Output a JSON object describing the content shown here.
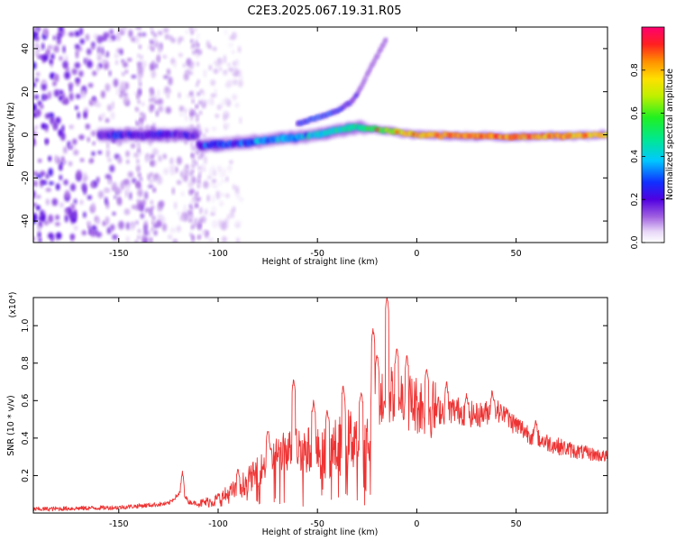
{
  "title": "C2E3.2025.067.19.31.R05",
  "chart_data": [
    {
      "type": "heatmap",
      "xlabel": "Height of straight line (km)",
      "ylabel": "Frequency (Hz)",
      "xlim": [
        -193,
        96
      ],
      "ylim": [
        -50,
        50
      ],
      "xticks": [
        -150,
        -100,
        -50,
        0,
        50
      ],
      "yticks": [
        -40,
        -20,
        0,
        20,
        40
      ],
      "colorbar": {
        "label": "Normalized spectral amplitude",
        "range": [
          0,
          1
        ],
        "ticks": [
          0.0,
          0.2,
          0.4,
          0.6,
          0.8
        ]
      },
      "ridge": {
        "x": [
          -110,
          -90,
          -70,
          -50,
          -40,
          -30,
          -25,
          0,
          50,
          96
        ],
        "y": [
          -5,
          -4,
          -2,
          0,
          2,
          3.5,
          3,
          0,
          -1,
          0
        ],
        "amplitude": [
          0.25,
          0.3,
          0.35,
          0.4,
          0.45,
          0.45,
          0.5,
          0.8,
          0.85,
          0.75
        ]
      },
      "upper_branch": {
        "x": [
          -60,
          -50,
          -40,
          -32,
          -28,
          -25,
          -15
        ],
        "y": [
          5,
          8,
          11,
          16,
          22,
          28,
          45
        ],
        "amplitude": [
          0.25,
          0.3,
          0.25,
          0.2,
          0.15,
          0.1,
          0.08
        ]
      },
      "noise_region": {
        "x": [
          -193,
          -110
        ],
        "y": [
          -50,
          50
        ]
      }
    },
    {
      "type": "line",
      "xlabel": "Height of straight line (km)",
      "ylabel": "SNR (10 * v/v)",
      "yscale_label": "(x10⁴)",
      "xlim": [
        -193,
        96
      ],
      "ylim": [
        0,
        1.15
      ],
      "xticks": [
        -150,
        -100,
        -50,
        0,
        50
      ],
      "yticks": [
        0.2,
        0.4,
        0.6,
        0.8,
        1.0
      ],
      "series": [
        {
          "color": "#ee3333",
          "x": [
            -193,
            -150,
            -125,
            -118,
            -115,
            -110,
            -100,
            -90,
            -80,
            -70,
            -60,
            -50,
            -40,
            -30,
            -25,
            -20,
            -15,
            -10,
            -5,
            0,
            10,
            20,
            30,
            40,
            50,
            60,
            70,
            80,
            96
          ],
          "y": [
            0.02,
            0.03,
            0.05,
            0.12,
            0.06,
            0.05,
            0.07,
            0.13,
            0.22,
            0.32,
            0.35,
            0.32,
            0.35,
            0.42,
            0.38,
            0.6,
            0.62,
            0.65,
            0.6,
            0.58,
            0.55,
            0.55,
            0.52,
            0.55,
            0.47,
            0.4,
            0.36,
            0.33,
            0.3
          ],
          "peak_x": [
            -118,
            -100,
            -90,
            -75,
            -62,
            -52,
            -45,
            -37,
            -28,
            -22,
            -20,
            -15,
            -10,
            -5,
            5,
            15,
            25,
            38,
            45,
            60
          ],
          "peak_y": [
            0.22,
            0.1,
            0.25,
            0.45,
            0.72,
            0.6,
            0.55,
            0.68,
            0.65,
            0.98,
            0.85,
            1.15,
            0.88,
            0.84,
            0.78,
            0.7,
            0.64,
            0.66,
            0.56,
            0.5
          ]
        }
      ]
    }
  ]
}
